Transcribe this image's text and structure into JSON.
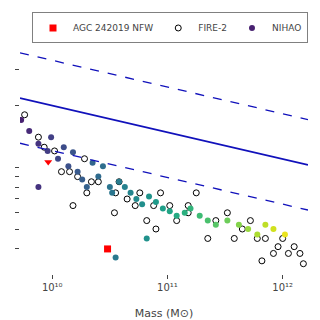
{
  "chart_data": {
    "type": "scatter",
    "xlabel": "Mass (M⊙)",
    "log": true,
    "xlim": [
      5248075000.0,
      1659587000000.0
    ],
    "ylim": [
      3.019952,
      38.01894
    ],
    "xticks": [
      {
        "value": 10000000000,
        "label": "10¹⁰"
      },
      {
        "value": 100000000000,
        "label": "10¹¹"
      },
      {
        "value": 1000000000000,
        "label": "10¹²"
      }
    ],
    "yticks": [
      4,
      5,
      6,
      7,
      8,
      9,
      10,
      20,
      30
    ],
    "tick_labels": "x",
    "grid": false,
    "legend": "upper right",
    "series": [
      {
        "type": "line",
        "color": "#1111bb",
        "line_style": "solid",
        "x": [
          5248075000.0,
          1659587000000.0
        ],
        "values": [
          21.69703,
          10.26597
        ]
      },
      {
        "type": "line",
        "color": "#1111bb",
        "line_style": "dashed",
        "x": [
          5248075000.0,
          1659587000000.0
        ],
        "values": [
          36.0081,
          17.03728
        ]
      },
      {
        "type": "line",
        "color": "#1111bb",
        "line_style": "dashed",
        "x": [
          5248075000.0,
          1659587000000.0
        ],
        "values": [
          13.07376,
          6.18586
        ]
      },
      {
        "name": "AGC 242019 NFW",
        "type": "scatter",
        "marker": "square",
        "color": "red",
        "x": [
          30199520000.0
        ],
        "values": [
          3.99945
        ]
      },
      {
        "name": "FIRE-2",
        "type": "scatter",
        "marker": "circle-open",
        "color": "black",
        "x": [
          5754399000.0,
          7585776000.0,
          8511380000.0,
          10471290000.0,
          12022640000.0,
          14125380000.0,
          16595870000.0,
          19054610000.0,
          21877620000.0,
          25118860000.0,
          35481340000.0,
          38018940000.0,
          44668360000.0,
          52480750000.0,
          57543990000.0,
          66069340000.0,
          75857760000.0,
          87096360000.0,
          104712900000.0,
          120226400000.0,
          151356100000.0,
          177827900000.0,
          223872100000.0,
          263026800000.0,
          331131100000.0,
          380189400000.0,
          446683600000.0,
          524807500000.0,
          602559600000.0,
          707945800000.0,
          831763800000.0,
          912010800000.0,
          1000000000000.0,
          1122018000000.0,
          1258925000000.0,
          1412538000000.0,
          1513561000000.0,
          15135610000.0,
          19952620000.0,
          79432820000.0,
          151356100000.0,
          34673690000.0,
          660693400000.0
        ],
        "values": [
          17.9887,
          13.99586,
          12.5026,
          11.995,
          9.50604,
          9.50604,
          8.99498,
          10.99005,
          8.4918,
          8.4918,
          7.49894,
          8.4918,
          6.99842,
          6.5013,
          7.49894,
          5.495409,
          6.5013,
          7.49894,
          6.5013,
          5.495409,
          5.99791,
          7.49894,
          4.4978,
          5.495409,
          5.99791,
          4.4978,
          5.00034,
          5.495409,
          4.4978,
          4.4978,
          3.801894,
          4.10204,
          4.4978,
          3.801894,
          4.10204,
          3.801894,
          3.388442,
          6.5013,
          7.49894,
          5.00034,
          6.5013,
          5.99791,
          3.49945
        ]
      },
      {
        "name": "NIHAO",
        "type": "scatter",
        "marker": "circle",
        "x": [
          5370318000.0,
          6309573000.0,
          7585776000.0,
          9120108000.0,
          9772372000.0,
          11220180000.0,
          12589250000.0,
          13803840000.0,
          15135610000.0,
          16595870000.0,
          18197010000.0,
          19952620000.0,
          22387210000.0,
          25118860000.0,
          27542290000.0,
          31622780000.0,
          33113110000.0,
          38018940000.0,
          42657950000.0,
          47863010000.0,
          53703180000.0,
          60255960000.0,
          69183100000.0,
          79432820000.0,
          91201080000.0,
          104712900000.0,
          120226400000.0,
          141253800000.0,
          158489300000.0,
          190546100000.0,
          223872100000.0,
          263026800000.0,
          331131100000.0,
          416869400000.0,
          501187200000.0,
          602559600000.0,
          707945800000.0,
          831763800000.0,
          1047129000000.0,
          35481340000.0,
          66069340000.0,
          7585776000.0
        ],
        "values": [
          16.98244,
          14.99684,
          13.0017,
          11.995,
          13.99586,
          10.99005,
          12.5026,
          10.09253,
          11.80321,
          9.50604,
          8.709636,
          7.99835,
          10.49543,
          8.99498,
          10.09253,
          7.99835,
          7.49894,
          8.4918,
          7.99835,
          7.49894,
          6.99842,
          6.606934,
          7.19449,
          6.76083,
          6.29506,
          6.09537,
          5.79429,
          5.99791,
          6.29506,
          5.79429,
          5.495409,
          5.248075,
          5.495409,
          5.248075,
          5.00034,
          4.69894,
          5.248075,
          5.00034,
          4.69894,
          3.630781,
          4.4978,
          7.99835
        ],
        "color_values": [
          9.73,
          9.8,
          9.88,
          9.96,
          9.99,
          10.05,
          10.1,
          10.14,
          10.18,
          10.22,
          10.26,
          10.3,
          10.35,
          10.4,
          10.44,
          10.5,
          10.52,
          10.58,
          10.63,
          10.68,
          10.73,
          10.78,
          10.84,
          10.9,
          10.96,
          11.02,
          11.08,
          11.15,
          11.2,
          11.28,
          11.35,
          11.42,
          11.52,
          11.62,
          11.7,
          11.78,
          11.85,
          11.92,
          12.02,
          10.55,
          10.82,
          9.88
        ],
        "color_range": [
          9.5,
          12.1
        ]
      },
      {
        "type": "scatter",
        "marker": "triangle-down",
        "color": "red",
        "x": [
          9225709000.0
        ],
        "values": [
          10.59254
        ]
      }
    ]
  }
}
